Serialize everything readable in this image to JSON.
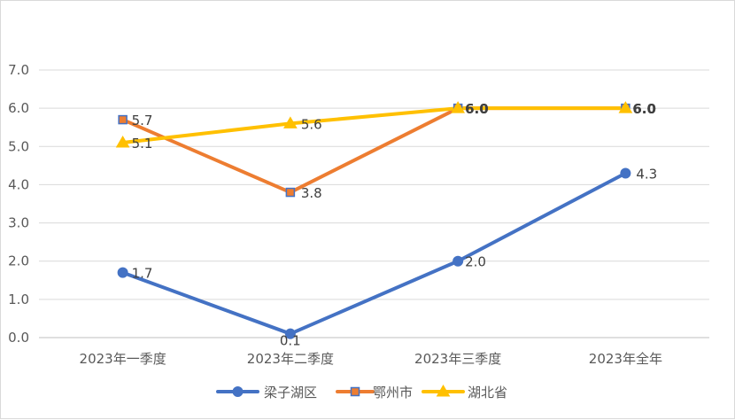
{
  "chart_data": {
    "type": "line",
    "categories": [
      "2023年一季度",
      "2023年二季度",
      "2023年三季度",
      "2023年全年"
    ],
    "ylim": [
      0,
      7
    ],
    "yticks": [
      "0.0",
      "1.0",
      "2.0",
      "3.0",
      "4.0",
      "5.0",
      "6.0",
      "7.0"
    ],
    "grid": true,
    "legend_position": "bottom",
    "series": [
      {
        "name": "梁子湖区",
        "color": "#4472c4",
        "marker": "circle",
        "values": [
          1.7,
          0.1,
          2.0,
          4.3
        ],
        "labels": [
          "1.7",
          "0.1",
          "2.0",
          "4.3"
        ]
      },
      {
        "name": "鄂州市",
        "color": "#ed7d31",
        "marker": "square",
        "values": [
          5.7,
          3.8,
          6.0,
          6.0
        ],
        "labels": [
          "5.7",
          "3.8",
          "6.0",
          "6.0"
        ]
      },
      {
        "name": "湖北省",
        "color": "#ffc000",
        "marker": "triangle",
        "values": [
          5.1,
          5.6,
          6.0,
          6.0
        ],
        "labels": [
          "5.1",
          "5.6",
          "6.0",
          "6.0"
        ]
      }
    ]
  }
}
